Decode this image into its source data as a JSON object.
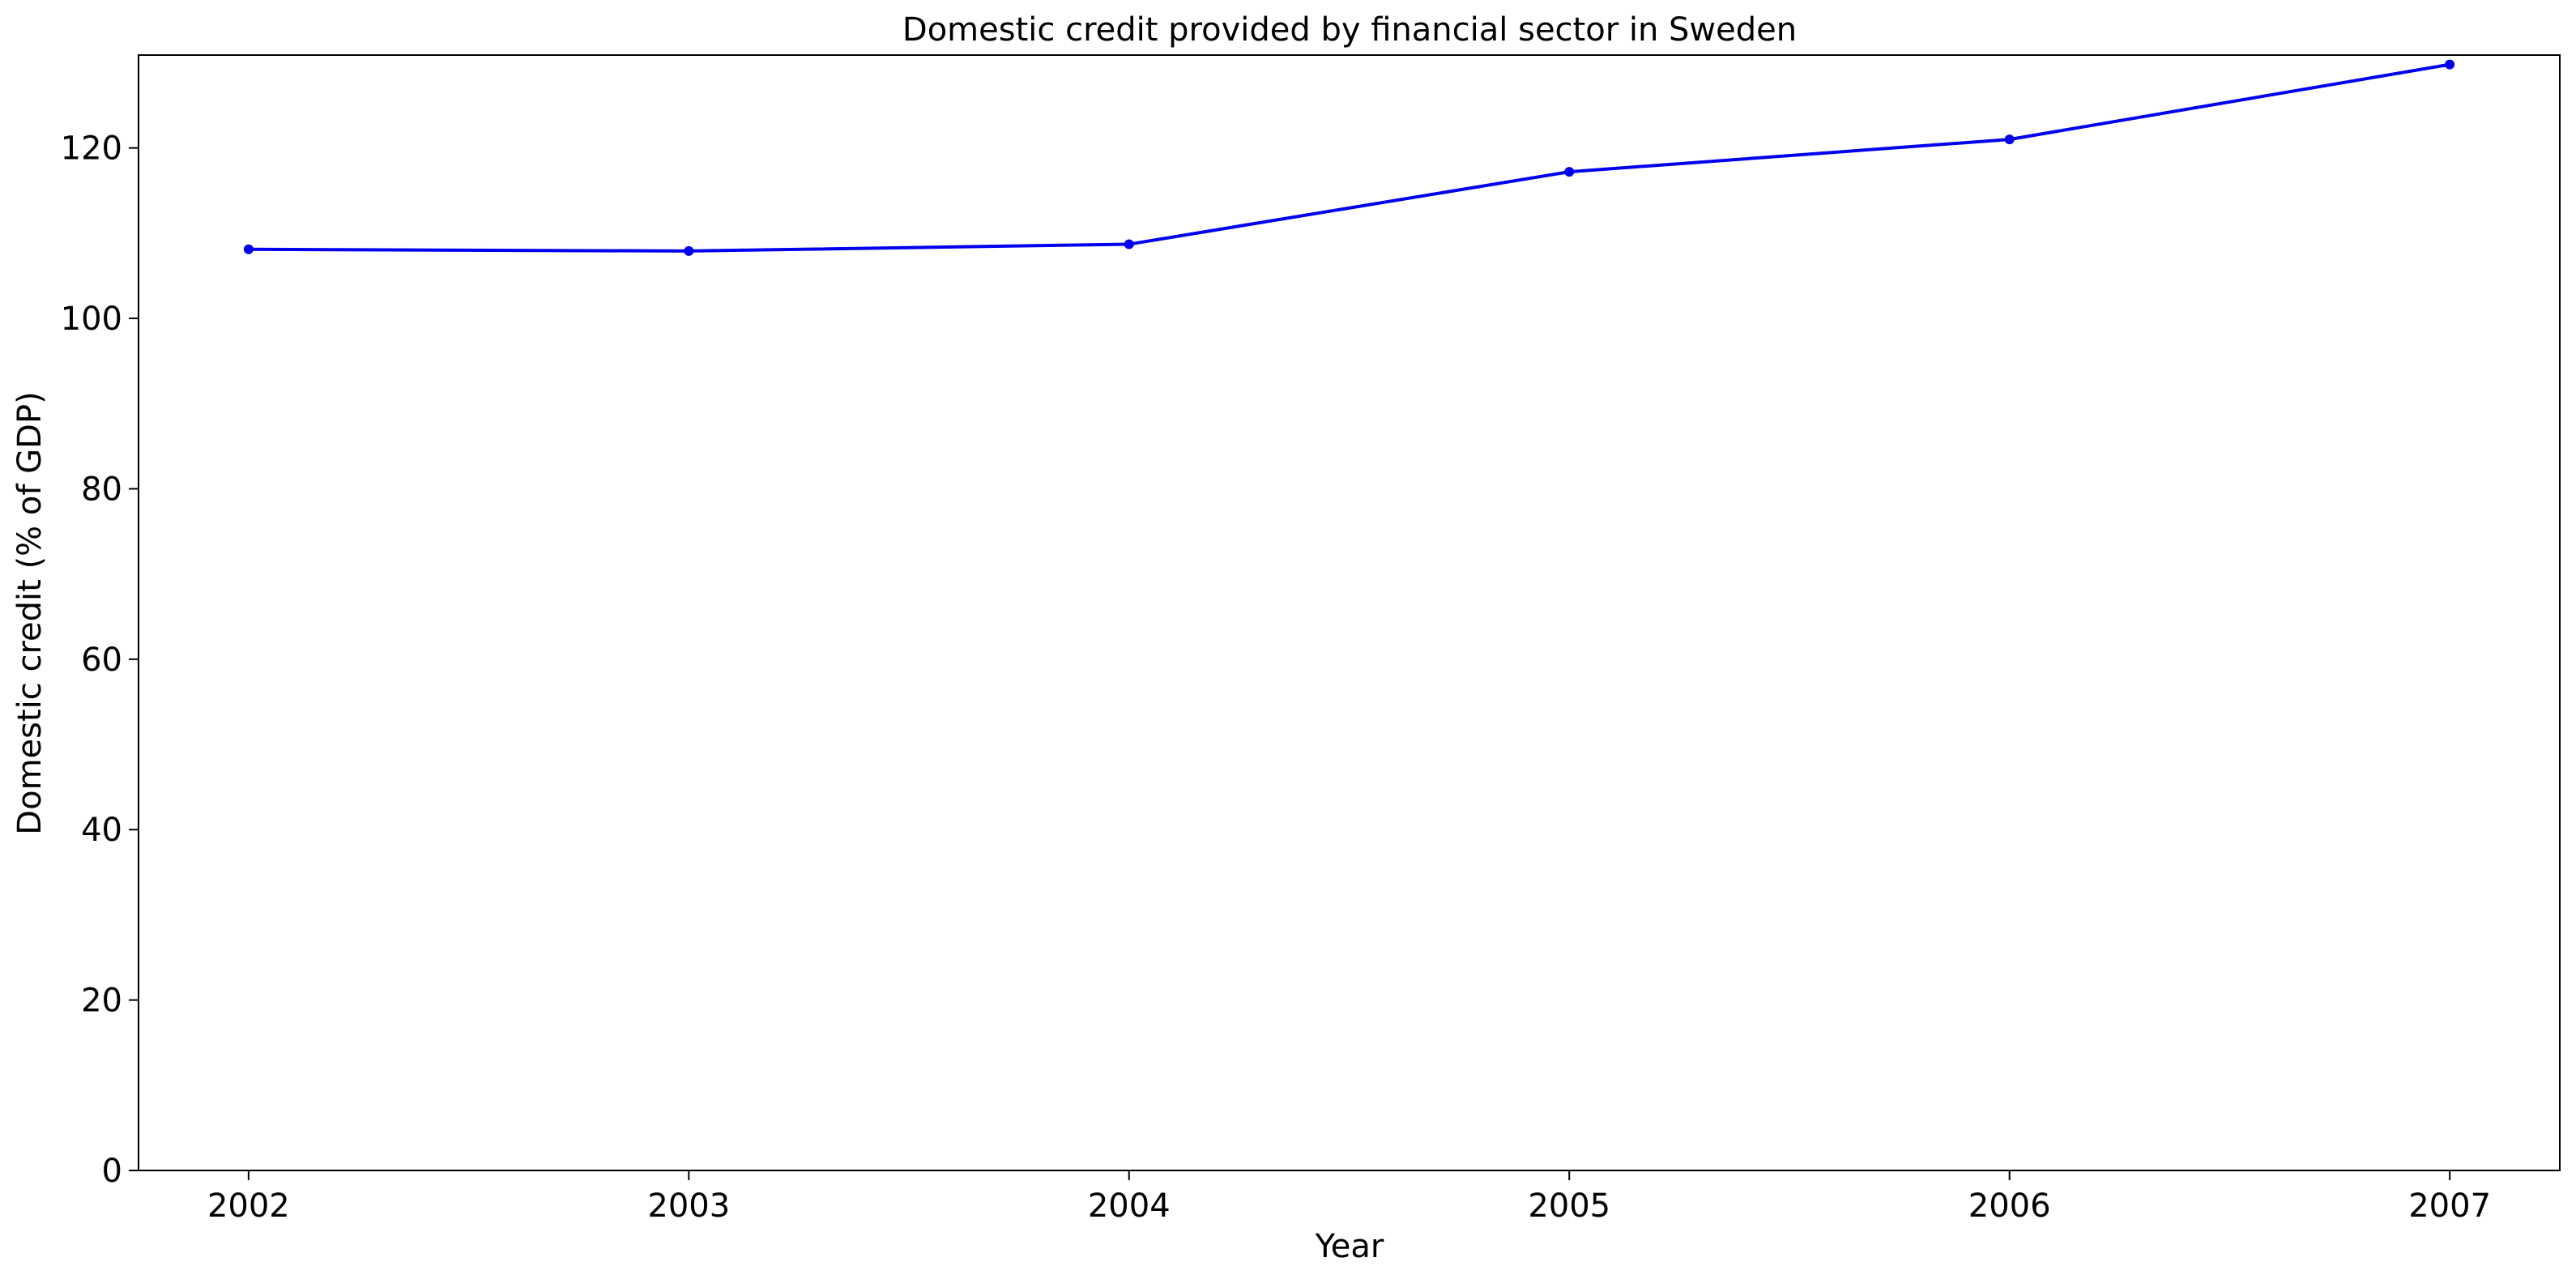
{
  "chart_data": {
    "type": "line",
    "title": "Domestic credit provided by financial sector in Sweden",
    "xlabel": "Year",
    "ylabel": "Domestic credit (% of GDP)",
    "x": [
      "2002",
      "2003",
      "2004",
      "2005",
      "2006",
      "2007"
    ],
    "series": [
      {
        "values": [
          108.1,
          107.9,
          108.7,
          117.2,
          121.0,
          129.8
        ],
        "color": "#0000ee"
      }
    ],
    "xlim": [
      2001.75,
      2007.25
    ],
    "ylim": [
      0,
      130.9
    ],
    "yticks": [
      0,
      20,
      40,
      60,
      80,
      100,
      120
    ],
    "grid": false,
    "legend": "none"
  }
}
